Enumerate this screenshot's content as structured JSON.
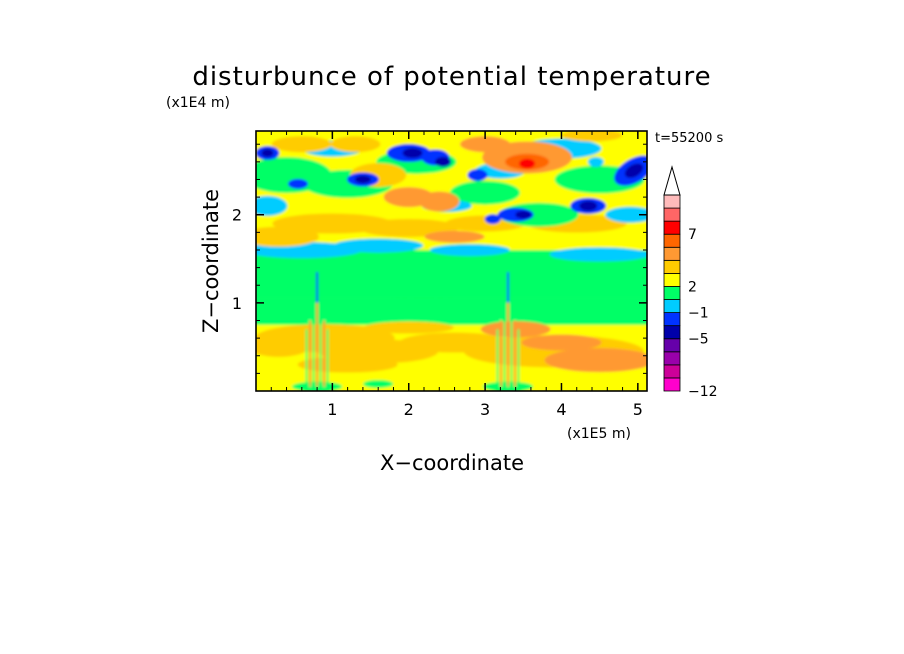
{
  "chart_data": {
    "type": "heatmap",
    "title": "disturbunce of potential temperature",
    "xlabel": "X−coordinate",
    "ylabel": "Z−coordinate",
    "x_scale_label": "(x1E5 m)",
    "y_scale_label": "(x1E4 m)",
    "time_label": "t=55200 s",
    "xlim": [
      0,
      5.12
    ],
    "ylim": [
      0,
      2.95
    ],
    "x_ticks": [
      1,
      2,
      3,
      4,
      5
    ],
    "x_tick_labels": [
      "1",
      "2",
      "3",
      "4",
      "5"
    ],
    "y_ticks": [
      1,
      2
    ],
    "y_tick_labels": [
      "1",
      "2"
    ],
    "grid": false,
    "colorbar": {
      "position": "right",
      "levels_colors": [
        "#ff00cc",
        "#cc0099",
        "#9900aa",
        "#6600aa",
        "#0000aa",
        "#0033ff",
        "#00ccff",
        "#00ff66",
        "#ffff00",
        "#ffcc00",
        "#ff9933",
        "#ff6600",
        "#ff0000",
        "#ff6666",
        "#ffbbbb"
      ],
      "extend_max_color": "#ffffff",
      "labels": [
        "−12",
        "−5",
        "−1",
        "2",
        "7"
      ],
      "label_positions": [
        0,
        4,
        6,
        8,
        12
      ]
    },
    "field_description": "Contour-filled field of potential temperature disturbance; mostly weak positive values (yellow/orange) in lower levels, near-zero (green) band around z=1.2–1.6, alternating positive/negative cells in the upper layer with strongest positive (red) near x=3.5, z=2.6 and negative (blue) cells near x=1.9, 2.4, 4.3, 4.9 at z=2.2–2.7; vertical wave-like streaks above x≈0.8 and x≈3.3."
  }
}
